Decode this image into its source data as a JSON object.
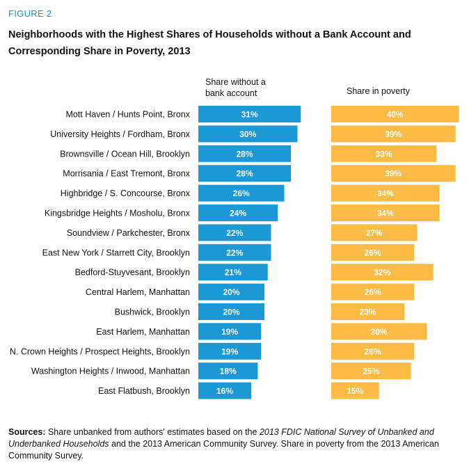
{
  "figure_label": "FIGURE 2",
  "title": "Neighborhoods with the Highest Shares of Households without a Bank Account and Corresponding Share in Poverty, 2013",
  "colors": {
    "accent": "#1a8fc9",
    "unbanked": "#1c98d4",
    "poverty": "#fbbb45"
  },
  "chart_data": {
    "type": "bar",
    "title": "Neighborhoods with the Highest Shares of Households without a Bank Account and Corresponding Share in Poverty, 2013",
    "categories": [
      "Mott Haven / Hunts Point, Bronx",
      "University Heights / Fordham, Bronx",
      "Brownsville / Ocean Hill, Brooklyn",
      "Morrisania / East Tremont, Bronx",
      "Highbridge / S. Concourse, Bronx",
      "Kingsbridge Heights / Mosholu, Bronx",
      "Soundview / Parkchester, Bronx",
      "East New York / Starrett City, Brooklyn",
      "Bedford-Stuyvesant, Brooklyn",
      "Central Harlem, Manhattan",
      "Bushwick, Brooklyn",
      "East Harlem, Manhattan",
      "N. Crown Heights / Prospect Heights, Brooklyn",
      "Washington Heights / Inwood, Manhattan",
      "East Flatbush, Brooklyn"
    ],
    "series": [
      {
        "name": "Share without a bank account",
        "header_lines": [
          "Share without a",
          "bank account"
        ],
        "color": "#1c98d4",
        "values": [
          31,
          30,
          28,
          28,
          26,
          24,
          22,
          22,
          21,
          20,
          20,
          19,
          19,
          18,
          16
        ]
      },
      {
        "name": "Share in poverty",
        "header_lines": [
          "Share in poverty"
        ],
        "color": "#fbbb45",
        "values": [
          40,
          39,
          33,
          39,
          34,
          34,
          27,
          26,
          32,
          26,
          23,
          30,
          26,
          25,
          15
        ]
      }
    ],
    "value_suffix": "%",
    "orientation": "horizontal"
  },
  "sources": {
    "label": "Sources:",
    "text_1": " Share unbanked from authors' estimates based on the ",
    "italic_1": "2013 FDIC National Survey of Unbanked and Underbanked Households",
    "text_2": " and the 2013 American Community Survey. Share in poverty from the 2013 American Community Survey."
  }
}
